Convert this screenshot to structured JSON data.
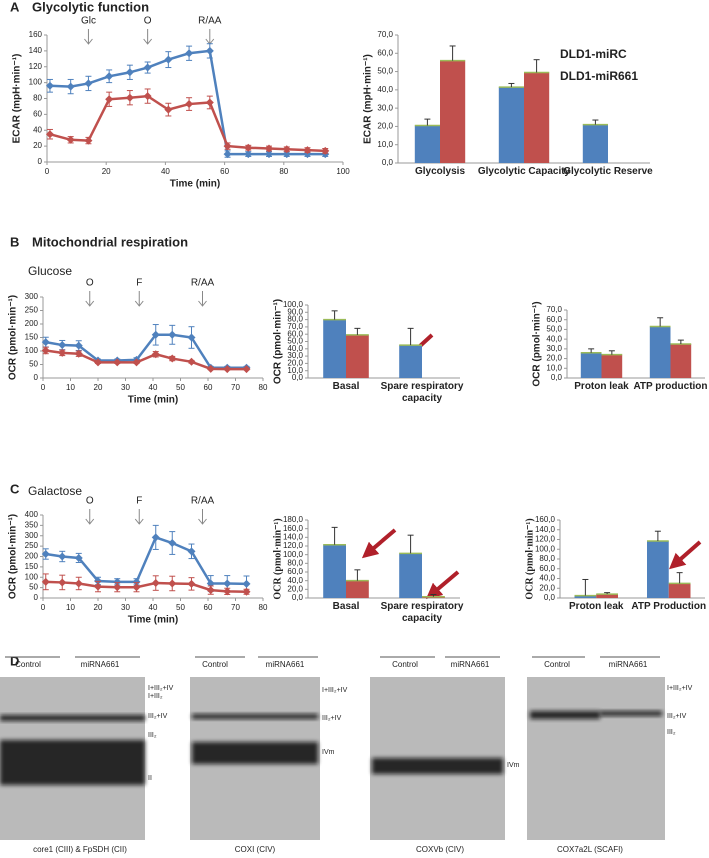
{
  "panels": [
    {
      "label": "A",
      "title": "Glycolytic function"
    },
    {
      "label": "B",
      "title": "Mitochondrial respiration",
      "subtitle": "Glucose"
    },
    {
      "label": "C",
      "subtitle": "Galactose"
    },
    {
      "label": "D"
    }
  ],
  "chart_data": [
    {
      "type": "line",
      "xlabel": "Time (min)",
      "ylabel": "ECAR (mpH·min⁻¹)",
      "x": [
        1,
        8,
        14,
        21,
        28,
        34,
        41,
        48,
        55,
        61,
        68,
        75,
        81,
        88,
        94
      ],
      "series": [
        {
          "color": "#4f81bd",
          "values": [
            96,
            95,
            99,
            108,
            113,
            119,
            129,
            137,
            140,
            10,
            10,
            10,
            10,
            10,
            10
          ],
          "errors": [
            8,
            9,
            9,
            8,
            9,
            7,
            10,
            9,
            9,
            4,
            3,
            3,
            3,
            3,
            3
          ]
        },
        {
          "color": "#c0504d",
          "values": [
            35,
            28,
            27,
            79,
            81,
            83,
            66,
            73,
            75,
            20,
            18,
            17,
            16,
            15,
            14
          ],
          "errors": [
            6,
            4,
            4,
            9,
            9,
            9,
            8,
            8,
            8,
            4,
            3,
            3,
            3,
            3,
            3
          ]
        }
      ],
      "annotations": [
        {
          "text": "Glc",
          "x": 14
        },
        {
          "text": "O",
          "x": 34
        },
        {
          "text": "R/AA",
          "x": 55
        }
      ],
      "xlim": [
        0,
        100
      ],
      "xticks": [
        0,
        20,
        40,
        60,
        80,
        100
      ],
      "ylim": [
        0,
        160
      ],
      "yticks": [
        0,
        20,
        40,
        60,
        80,
        100,
        120,
        140,
        160
      ]
    },
    {
      "type": "bar",
      "ylabel": "ECAR (mpH·min⁻¹)",
      "legend": "upper right",
      "categories": [
        "Glycolysis",
        "Glycolytic Capacity",
        "Glycolytic Reserve"
      ],
      "series": [
        {
          "name": "DLD1-miRC",
          "color": "#4f81bd",
          "values": [
            20.5,
            41.5,
            21
          ],
          "errors": [
            3.5,
            2,
            2.5
          ]
        },
        {
          "name": "DLD1-miR661",
          "color": "#c0504d",
          "values": [
            56,
            49.5,
            null
          ],
          "errors": [
            8,
            7,
            null
          ]
        }
      ],
      "ylim": [
        0,
        70
      ],
      "yticks": [
        {
          "value": 0,
          "label": "0,0"
        },
        {
          "value": 10,
          "label": "10,0"
        },
        {
          "value": 20,
          "label": "20,0"
        },
        {
          "value": 30,
          "label": "30,0"
        },
        {
          "value": 40,
          "label": "40,0"
        },
        {
          "value": 50,
          "label": "50,0"
        },
        {
          "value": 60,
          "label": "60,0"
        },
        {
          "value": 70,
          "label": "70,0"
        }
      ]
    },
    {
      "type": "line",
      "xlabel": "Time (min)",
      "ylabel": "OCR (pmol·min⁻¹)",
      "x": [
        1,
        7,
        13,
        20,
        27,
        34,
        41,
        47,
        54,
        61,
        67,
        74
      ],
      "series": [
        {
          "color": "#4f81bd",
          "values": [
            133,
            122,
            120,
            65,
            65,
            67,
            160,
            160,
            150,
            38,
            38,
            38
          ],
          "errors": [
            18,
            17,
            18,
            5,
            5,
            8,
            38,
            35,
            40,
            5,
            5,
            5
          ]
        },
        {
          "color": "#c0504d",
          "values": [
            102,
            93,
            90,
            58,
            58,
            58,
            88,
            72,
            60,
            34,
            33,
            33
          ],
          "errors": [
            12,
            10,
            10,
            4,
            4,
            4,
            10,
            8,
            5,
            3,
            3,
            3
          ]
        }
      ],
      "annotations": [
        {
          "text": "O",
          "x": 17
        },
        {
          "text": "F",
          "x": 35
        },
        {
          "text": "R/AA",
          "x": 58
        }
      ],
      "xlim": [
        0,
        80
      ],
      "xticks": [
        0,
        10,
        20,
        30,
        40,
        50,
        60,
        70,
        80
      ],
      "ylim": [
        0,
        300
      ],
      "yticks": [
        0,
        50,
        100,
        150,
        200,
        250,
        300
      ]
    },
    {
      "type": "bar",
      "ylabel": "OCR (pmol·min⁻¹)",
      "categories": [
        "Basal",
        "Spare respiratory capacity"
      ],
      "series": [
        {
          "color": "#4f81bd",
          "values": [
            80,
            45
          ],
          "errors": [
            12,
            23
          ]
        },
        {
          "color": "#c0504d",
          "values": [
            59,
            null
          ],
          "errors": [
            9,
            null
          ]
        }
      ],
      "ylim": [
        0,
        100
      ],
      "yticks": [
        {
          "value": 0,
          "label": "0,0"
        },
        {
          "value": 10,
          "label": "10,0"
        },
        {
          "value": 20,
          "label": "20,0"
        },
        {
          "value": 30,
          "label": "30,0"
        },
        {
          "value": 40,
          "label": "40,0"
        },
        {
          "value": 50,
          "label": "50,0"
        },
        {
          "value": 60,
          "label": "60,0"
        },
        {
          "value": 70,
          "label": "70,0"
        },
        {
          "value": 80,
          "label": "80,0"
        },
        {
          "value": 90,
          "label": "90,0"
        },
        {
          "value": 100,
          "label": "100,0"
        }
      ]
    },
    {
      "type": "bar",
      "ylabel": "OCR (pmol·min⁻¹)",
      "categories": [
        "Proton leak",
        "ATP production"
      ],
      "series": [
        {
          "color": "#4f81bd",
          "values": [
            26,
            53
          ],
          "errors": [
            4,
            9
          ]
        },
        {
          "color": "#c0504d",
          "values": [
            24,
            35
          ],
          "errors": [
            4,
            4
          ]
        }
      ],
      "ylim": [
        0,
        70
      ],
      "yticks": [
        {
          "value": 0,
          "label": "0,0"
        },
        {
          "value": 10,
          "label": "10,0"
        },
        {
          "value": 20,
          "label": "20,0"
        },
        {
          "value": 30,
          "label": "30,0"
        },
        {
          "value": 40,
          "label": "40,0"
        },
        {
          "value": 50,
          "label": "50,0"
        },
        {
          "value": 60,
          "label": "60,0"
        },
        {
          "value": 70,
          "label": "70,0"
        }
      ]
    },
    {
      "type": "line",
      "xlabel": "Time (min)",
      "ylabel": "OCR (pmol·min⁻¹)",
      "x": [
        1,
        7,
        13,
        20,
        27,
        34,
        41,
        47,
        54,
        61,
        67,
        74
      ],
      "series": [
        {
          "color": "#4f81bd",
          "values": [
            212,
            200,
            193,
            82,
            78,
            78,
            292,
            265,
            225,
            70,
            70,
            68
          ],
          "errors": [
            25,
            25,
            22,
            18,
            15,
            15,
            58,
            55,
            35,
            38,
            38,
            38
          ]
        },
        {
          "color": "#c0504d",
          "values": [
            78,
            75,
            70,
            55,
            52,
            52,
            72,
            70,
            68,
            38,
            32,
            30
          ],
          "errors": [
            38,
            35,
            30,
            25,
            22,
            22,
            35,
            35,
            30,
            20,
            15,
            12
          ]
        }
      ],
      "annotations": [
        {
          "text": "O",
          "x": 17
        },
        {
          "text": "F",
          "x": 35
        },
        {
          "text": "R/AA",
          "x": 58
        }
      ],
      "xlim": [
        0,
        80
      ],
      "xticks": [
        0,
        10,
        20,
        30,
        40,
        50,
        60,
        70,
        80
      ],
      "ylim": [
        0,
        400
      ],
      "yticks": [
        0,
        50,
        100,
        150,
        200,
        250,
        300,
        350,
        400
      ]
    },
    {
      "type": "bar",
      "ylabel": "OCR (pmol·min⁻¹)",
      "serif": true,
      "categories": [
        "Basal",
        "Spare respiratory capacity"
      ],
      "series": [
        {
          "color": "#4f81bd",
          "values": [
            123,
            103
          ],
          "errors": [
            40,
            42
          ]
        },
        {
          "color": "#c0504d",
          "values": [
            40,
            3
          ],
          "errors": [
            25,
            5
          ]
        }
      ],
      "ylim": [
        0,
        180
      ],
      "yticks": [
        {
          "value": 0,
          "label": "0,0"
        },
        {
          "value": 20,
          "label": "20,0"
        },
        {
          "value": 40,
          "label": "40,0"
        },
        {
          "value": 60,
          "label": "60,0"
        },
        {
          "value": 80,
          "label": "80,0"
        },
        {
          "value": 100,
          "label": "100,0"
        },
        {
          "value": 120,
          "label": "120,0"
        },
        {
          "value": 140,
          "label": "140,0"
        },
        {
          "value": 160,
          "label": "160,0"
        },
        {
          "value": 180,
          "label": "180,0"
        }
      ]
    },
    {
      "type": "bar",
      "ylabel": "OCR (pmol·min⁻¹)",
      "serif": true,
      "categories": [
        "Proton leak",
        "ATP Production"
      ],
      "series": [
        {
          "color": "#4f81bd",
          "values": [
            5,
            117
          ],
          "errors": [
            33,
            20
          ]
        },
        {
          "color": "#c0504d",
          "values": [
            8,
            30
          ],
          "errors": [
            3,
            22
          ]
        }
      ],
      "ylim": [
        0,
        160
      ],
      "yticks": [
        {
          "value": 0,
          "label": "0,0"
        },
        {
          "value": 20,
          "label": "20,0"
        },
        {
          "value": 40,
          "label": "40,0"
        },
        {
          "value": 60,
          "label": "60,0"
        },
        {
          "value": 80,
          "label": "80,0"
        },
        {
          "value": 100,
          "label": "100,0"
        },
        {
          "value": 120,
          "label": "120,0"
        },
        {
          "value": 140,
          "label": "140,0"
        },
        {
          "value": 160,
          "label": "160,0"
        }
      ]
    }
  ],
  "blots": [
    {
      "groups": [
        "Control",
        "miRNA661"
      ],
      "bands": [
        "I+III₂+IV",
        "I+III₂",
        "III₂+IV",
        "III₂",
        "II"
      ],
      "caption": "core1 (CIII) & FpSDH (CII)"
    },
    {
      "groups": [
        "Control",
        "miRNA661"
      ],
      "bands": [
        "I+III₂+IV",
        "III₂+IV",
        "IVm"
      ],
      "caption": "COXI (CIV)"
    },
    {
      "groups": [
        "Control",
        "miRNA661"
      ],
      "bands": [
        "IVm"
      ],
      "caption": "COXVb (CIV)"
    },
    {
      "groups": [
        "Control",
        "miRNA661"
      ],
      "bands": [
        "I+III₂+IV",
        "III₂+IV",
        "III₂"
      ],
      "caption": "COX7a2L (SCAFI)"
    }
  ]
}
